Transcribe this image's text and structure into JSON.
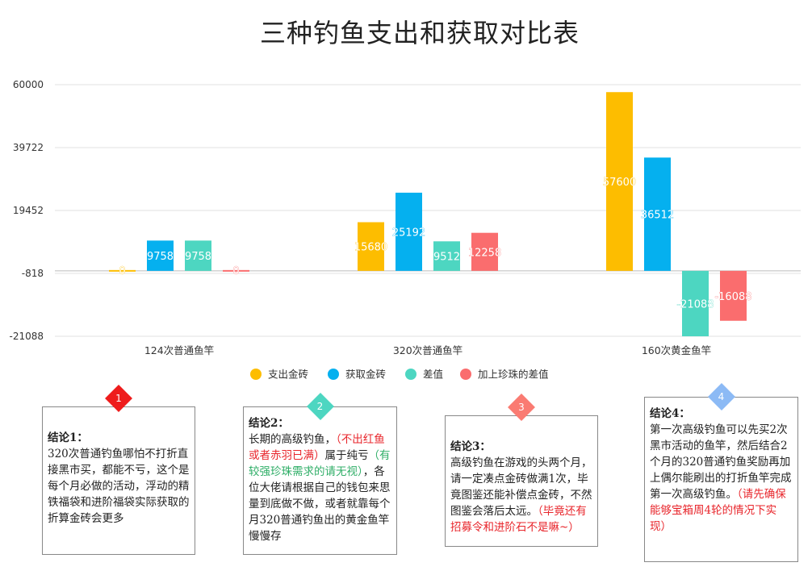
{
  "title": "三种钓鱼支出和获取对比表",
  "chart_data": {
    "type": "bar",
    "categories": [
      "124次普通鱼竿",
      "320次普通鱼竿",
      "160次黄金鱼竿"
    ],
    "y_ticks": [
      "60000",
      "39722",
      "19452",
      "-818",
      "-21088"
    ],
    "ylim": [
      -21088,
      60000
    ],
    "grid": true,
    "legend_position": "bottom",
    "series": [
      {
        "name": "支出金砖",
        "color": "#fdbd00",
        "values": [
          0,
          15680,
          57600
        ]
      },
      {
        "name": "获取金砖",
        "color": "#05b0ef",
        "values": [
          9758,
          25192,
          36512
        ]
      },
      {
        "name": "差值",
        "color": "#4dd6c1",
        "values": [
          9758,
          9512,
          -21088
        ]
      },
      {
        "name": "加上珍珠的差值",
        "color": "#fa6d6e",
        "values": [
          0,
          12258,
          -16088
        ]
      }
    ]
  },
  "conclusions": [
    {
      "badge": "1",
      "badge_color": "#ee1c1c",
      "head": "结论1：",
      "lines": [
        {
          "text": "320次普通钓鱼哪怕不打折直接黑市买，都能不亏，这个是每个月必做的活动，浮动的精铁福袋和进阶福袋实际获取的折算金砖会更多",
          "tone": "normal"
        }
      ]
    },
    {
      "badge": "2",
      "badge_color": "#4dd6c1",
      "head": "结论2：",
      "lines": [
        {
          "text": "长期的高级钓鱼，",
          "tone": "normal"
        },
        {
          "text": "（不出红鱼或者赤羽已满）",
          "tone": "red"
        },
        {
          "text": "属于纯亏",
          "tone": "normal"
        },
        {
          "text": "（有较强珍珠需求的请无视）",
          "tone": "green"
        },
        {
          "text": "，各位大佬请根据自己的钱包来思量到底做不做，或者就靠每个月320普通钓鱼出的黄金鱼竿慢慢存",
          "tone": "normal"
        }
      ]
    },
    {
      "badge": "3",
      "badge_color": "#fa7b72",
      "head": "结论3：",
      "lines": [
        {
          "text": "高级钓鱼在游戏的头两个月，请一定凑点金砖做满1次，毕竟图鉴还能补偿点金砖，不然图鉴会落后太远。",
          "tone": "normal"
        },
        {
          "text": "（毕竟还有招募令和进阶石不是嘛~）",
          "tone": "red"
        }
      ]
    },
    {
      "badge": "4",
      "badge_color": "#8cbaf5",
      "head": "结论4：",
      "lines": [
        {
          "text": "第一次高级钓鱼可以先买2次黑市活动的鱼竿，然后结合2个月的320普通钓鱼奖励再加上偶尔能刷出的打折鱼竿完成第一次高级钓鱼。",
          "tone": "normal"
        },
        {
          "text": "（请先确保能够宝箱周4轮的情况下实现）",
          "tone": "red"
        }
      ]
    }
  ]
}
